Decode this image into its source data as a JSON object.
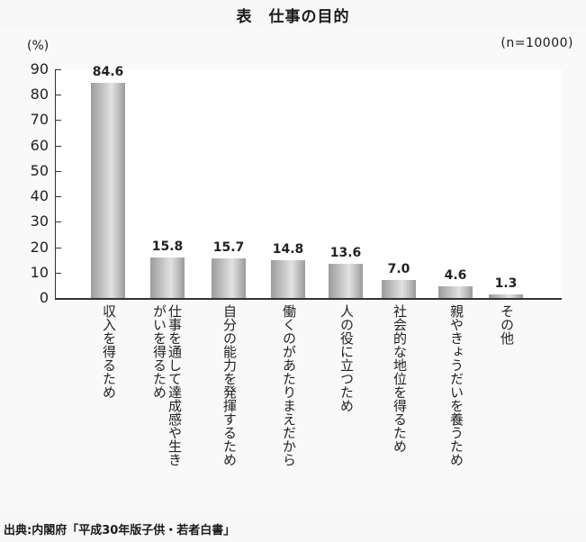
{
  "header": {
    "title": "表　仕事の目的",
    "sample_size": "(n=10000)",
    "unit": "(%)"
  },
  "footer": {
    "source": "出典:内閣府「平成30年版子供・若者白書」"
  },
  "chart_data": {
    "type": "bar",
    "title": "表　仕事の目的",
    "subtitle": "(n=10000)",
    "xlabel": "",
    "ylabel": "(%)",
    "ylim": [
      0,
      90
    ],
    "yticks": [
      0,
      10,
      20,
      30,
      40,
      50,
      60,
      70,
      80,
      90
    ],
    "grid": false,
    "legend": null,
    "categories": [
      "収入を得るため",
      "仕事を通して達成感や生きがいを得るため",
      "自分の能力を発揮するため",
      "働くのがあたりまえだから",
      "人の役に立つため",
      "社会的な地位を得るため",
      "親やきょうだいを養うため",
      "その他"
    ],
    "category_lines": [
      [
        "収入を得るため"
      ],
      [
        "仕事を通して達成感や生き",
        "がいを得るため"
      ],
      [
        "自分の能力を発揮するため"
      ],
      [
        "働くのがあたりまえだから"
      ],
      [
        "人の役に立つため"
      ],
      [
        "社会的な地位を得るため"
      ],
      [
        "親やきょうだいを養うため"
      ],
      [
        "その他"
      ]
    ],
    "values": [
      84.6,
      15.8,
      15.7,
      14.8,
      13.6,
      7.0,
      4.6,
      1.3
    ],
    "value_labels": [
      "84.6",
      "15.8",
      "15.7",
      "14.8",
      "13.6",
      "7.0",
      "4.6",
      "1.3"
    ],
    "annotations": [
      "出典:内閣府「平成30年版子供・若者白書」"
    ],
    "bar_color": "#c4c4c4"
  }
}
